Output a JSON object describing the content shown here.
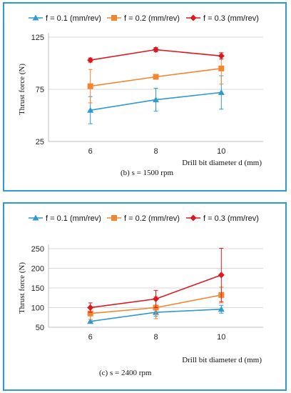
{
  "colors": {
    "frame": "#2E9AD0",
    "series": [
      "#2E9AD0",
      "#F4852E",
      "#E0161E"
    ]
  },
  "chart_data": [
    {
      "type": "line",
      "caption": "(b) s = 1500 rpm",
      "xlabel": "Drill  bit diameter  d (mm)",
      "ylabel": "Thrust force (N)",
      "x": [
        6,
        8,
        10
      ],
      "ylim": [
        25,
        125
      ],
      "yticks": [
        25,
        75,
        125
      ],
      "grid": "horizontal",
      "legend": "top",
      "series": [
        {
          "name": "f = 0.1 (mm/rev)",
          "marker": "triangle",
          "values": [
            55,
            65,
            72
          ],
          "errors": [
            13,
            11,
            16
          ]
        },
        {
          "name": "f = 0.2 (mm/rev)",
          "marker": "square",
          "values": [
            78,
            87,
            95
          ],
          "errors": [
            16,
            2,
            15
          ]
        },
        {
          "name": "f = 0.3 (mm/rev)",
          "marker": "diamond",
          "values": [
            103,
            113,
            107
          ],
          "errors": [
            2,
            2,
            3
          ]
        }
      ]
    },
    {
      "type": "line",
      "caption": "(c)  s = 2400 rpm",
      "xlabel": "Drill  bit diameter  d (mm)",
      "ylabel": "Thrust force (N)",
      "x": [
        6,
        8,
        10
      ],
      "ylim": [
        50,
        250
      ],
      "yticks": [
        50,
        100,
        150,
        200,
        250
      ],
      "grid": "horizontal",
      "legend": "top",
      "series": [
        {
          "name": "f = 0.1 (mm/rev)",
          "marker": "triangle",
          "values": [
            65,
            88,
            96
          ],
          "errors": [
            5,
            10,
            10
          ]
        },
        {
          "name": "f = 0.2 (mm/rev)",
          "marker": "square",
          "values": [
            85,
            100,
            132
          ],
          "errors": [
            15,
            28,
            20
          ]
        },
        {
          "name": "f = 0.3 (mm/rev)",
          "marker": "diamond",
          "values": [
            100,
            122,
            183
          ],
          "errors": [
            12,
            22,
            68
          ]
        }
      ]
    }
  ]
}
